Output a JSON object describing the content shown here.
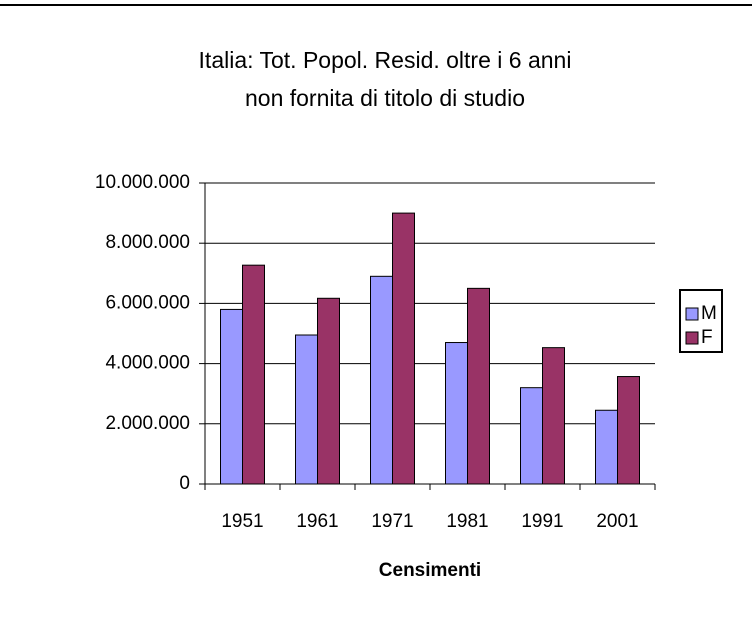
{
  "chart_data": {
    "type": "bar",
    "title": [
      "Italia: Tot. Popol. Resid. oltre i 6 anni",
      "non fornita di titolo di studio"
    ],
    "x_label": "Censimenti",
    "categories": [
      "1951",
      "1961",
      "1971",
      "1981",
      "1991",
      "2001"
    ],
    "series": [
      {
        "name": "M",
        "color": "#9999ff",
        "values": [
          5800000,
          4950000,
          6900000,
          4700000,
          3200000,
          2450000
        ]
      },
      {
        "name": "F",
        "color": "#993366",
        "values": [
          7270000,
          6170000,
          9000000,
          6500000,
          4530000,
          3570000
        ]
      }
    ],
    "ylim": [
      0,
      10000000
    ],
    "yticks": [
      0,
      {
        "value": 2000000,
        "label": "2.000.000"
      },
      {
        "value": 4000000,
        "label": "4.000.000"
      },
      {
        "value": 6000000,
        "label": "6.000.000"
      },
      {
        "value": 8000000,
        "label": "8.000.000"
      },
      {
        "value": 10000000,
        "label": "10.000.000"
      }
    ],
    "grid": true,
    "legend": "right"
  }
}
